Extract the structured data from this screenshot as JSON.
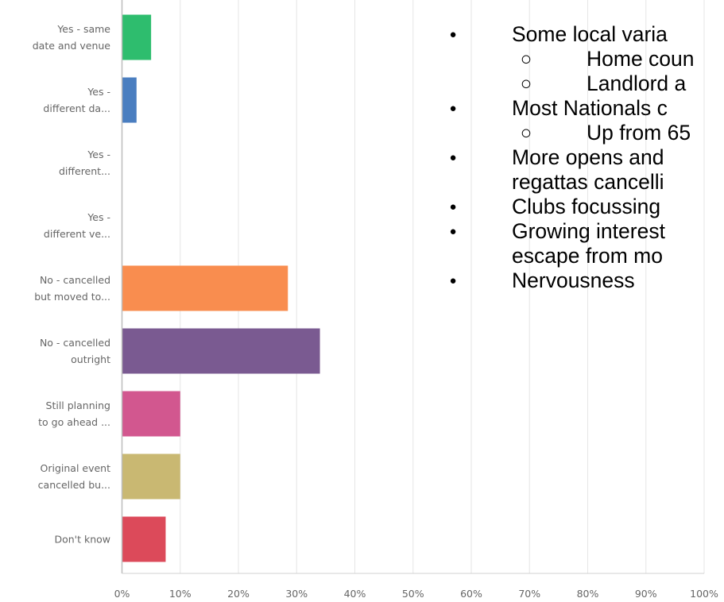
{
  "chart_data": {
    "type": "bar",
    "orientation": "horizontal",
    "categories": [
      [
        "Yes - same",
        "date and venue"
      ],
      [
        "Yes -",
        "different da..."
      ],
      [
        "Yes -",
        "different..."
      ],
      [
        "Yes -",
        "different ve..."
      ],
      [
        "No - cancelled",
        "but moved to..."
      ],
      [
        "No - cancelled",
        "outright"
      ],
      [
        "Still planning",
        "to go ahead ..."
      ],
      [
        "Original event",
        "cancelled bu..."
      ],
      [
        "Don't know"
      ]
    ],
    "values": [
      5,
      2.5,
      0,
      0,
      28.5,
      34,
      10,
      10,
      7.5
    ],
    "colors": [
      "#2ebd6e",
      "#4a7ec0",
      "#cccccc",
      "#cccccc",
      "#f98d4f",
      "#7a5a91",
      "#d2578f",
      "#c9b872",
      "#dc4a5a"
    ],
    "xlim": [
      0,
      100
    ],
    "x_ticks": [
      "0%",
      "10%",
      "20%",
      "30%",
      "40%",
      "50%",
      "60%",
      "70%",
      "80%",
      "90%",
      "100%"
    ],
    "grid": true,
    "title": "",
    "xlabel": "",
    "ylabel": ""
  },
  "bullets": [
    {
      "level": 1,
      "marker": "●",
      "text": "Some local varia"
    },
    {
      "level": 2,
      "marker": "○",
      "text": "Home coun"
    },
    {
      "level": 2,
      "marker": "○",
      "text": "Landlord a"
    },
    {
      "level": 1,
      "marker": "●",
      "text": "Most Nationals c"
    },
    {
      "level": 2,
      "marker": "○",
      "text": "Up from 65"
    },
    {
      "level": 1,
      "marker": "●",
      "text": "More opens and",
      "text2": "regattas cancelli"
    },
    {
      "level": 1,
      "marker": "●",
      "text": "Clubs focussing"
    },
    {
      "level": 1,
      "marker": "●",
      "text": "Growing interest",
      "text2": "escape from mo"
    },
    {
      "level": 1,
      "marker": "●",
      "text": "Nervousness"
    }
  ]
}
